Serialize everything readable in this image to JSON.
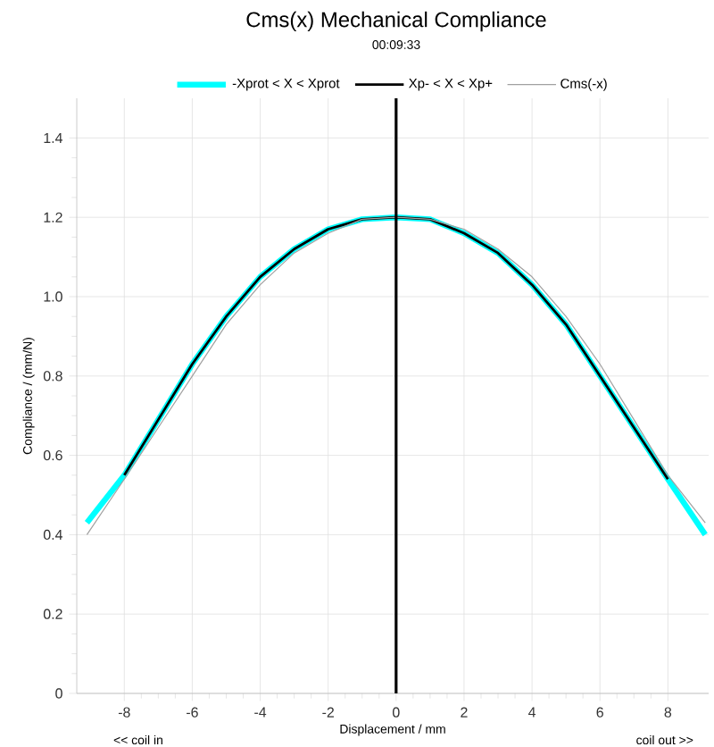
{
  "chart_data": {
    "type": "line",
    "title": "Cms(x) Mechanical Compliance",
    "subtitle": "00:09:33",
    "xlabel": "Displacement / mm",
    "ylabel": "Compliance / (mm/N)",
    "series": [
      {
        "name": "-Xprot < X < Xprot",
        "color": "#00ffff",
        "x": [
          -9.1,
          -8,
          -7,
          -6,
          -5,
          -4,
          -3,
          -2,
          -1,
          0,
          1,
          2,
          3,
          4,
          5,
          6,
          7,
          8,
          9.1
        ],
        "values": [
          0.43,
          0.55,
          0.69,
          0.83,
          0.95,
          1.05,
          1.12,
          1.17,
          1.195,
          1.2,
          1.195,
          1.16,
          1.11,
          1.03,
          0.93,
          0.8,
          0.67,
          0.54,
          0.4
        ]
      },
      {
        "name": "Xp- < X < Xp+",
        "color": "#000000",
        "x": [
          -8,
          -7,
          -6,
          -5,
          -4,
          -3,
          -2,
          -1,
          0,
          1,
          2,
          3,
          4,
          5,
          6,
          7,
          8
        ],
        "values": [
          0.55,
          0.69,
          0.83,
          0.95,
          1.05,
          1.12,
          1.17,
          1.195,
          1.2,
          1.195,
          1.16,
          1.11,
          1.03,
          0.93,
          0.8,
          0.67,
          0.54
        ]
      },
      {
        "name": "Cms(-x)",
        "color": "#a0a0a0",
        "x": [
          -9.1,
          -8,
          -7,
          -6,
          -5,
          -4,
          -3,
          -2,
          -1,
          0,
          1,
          2,
          3,
          4,
          5,
          6,
          7,
          8,
          9.1
        ],
        "values": [
          0.4,
          0.54,
          0.67,
          0.8,
          0.93,
          1.03,
          1.11,
          1.16,
          1.195,
          1.2,
          1.195,
          1.17,
          1.12,
          1.05,
          0.95,
          0.83,
          0.69,
          0.55,
          0.43
        ]
      }
    ],
    "xlim": [
      -9.4,
      9.2
    ],
    "ylim": [
      0,
      1.5
    ],
    "xticks": [
      -8,
      -6,
      -4,
      -2,
      0,
      2,
      4,
      6,
      8
    ],
    "yticks": [
      0,
      0.2,
      0.4,
      0.6,
      0.8,
      {
        "value": 1,
        "label": "1.0"
      },
      1.2,
      1.4
    ],
    "ref_lines": [
      {
        "axis": "x",
        "value": 0,
        "color": "#000000"
      }
    ],
    "annotations": [
      "<< coil in",
      "coil out >>"
    ],
    "grid": true,
    "legend": "top",
    "line_style": "solid",
    "marker": "none"
  }
}
